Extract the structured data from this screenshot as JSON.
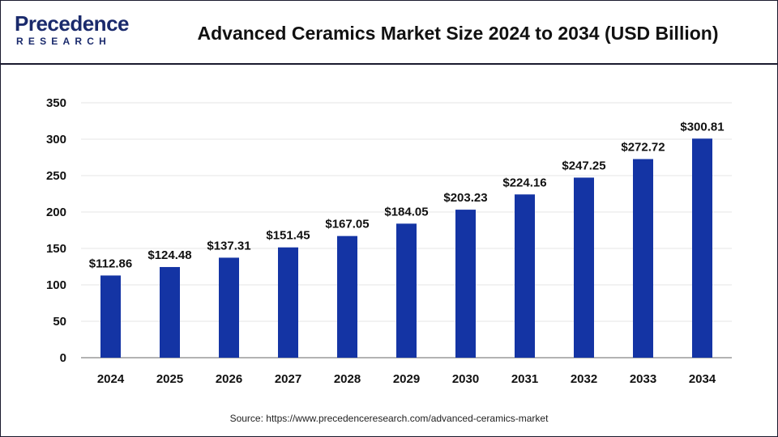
{
  "header": {
    "logo_main": "Precedence",
    "logo_sub": "RESEARCH",
    "title": "Advanced Ceramics Market Size 2024 to 2034 (USD Billion)"
  },
  "colors": {
    "bar": "#1434a4",
    "brand": "#1a2a6c"
  },
  "chart_data": {
    "type": "bar",
    "categories": [
      "2024",
      "2025",
      "2026",
      "2027",
      "2028",
      "2029",
      "2030",
      "2031",
      "2032",
      "2033",
      "2034"
    ],
    "values": [
      112.86,
      124.48,
      137.31,
      151.45,
      167.05,
      184.05,
      203.23,
      224.16,
      247.25,
      272.72,
      300.81
    ],
    "data_labels": [
      "$112.86",
      "$124.48",
      "$137.31",
      "$151.45",
      "$167.05",
      "$184.05",
      "$203.23",
      "$224.16",
      "$247.25",
      "$272.72",
      "$300.81"
    ],
    "yticks": [
      "0",
      "50",
      "100",
      "150",
      "200",
      "250",
      "300",
      "350"
    ],
    "ylim": [
      0,
      350
    ],
    "grid": true,
    "legend": "none"
  },
  "footer": {
    "source": "Source: https://www.precedenceresearch.com/advanced-ceramics-market"
  }
}
